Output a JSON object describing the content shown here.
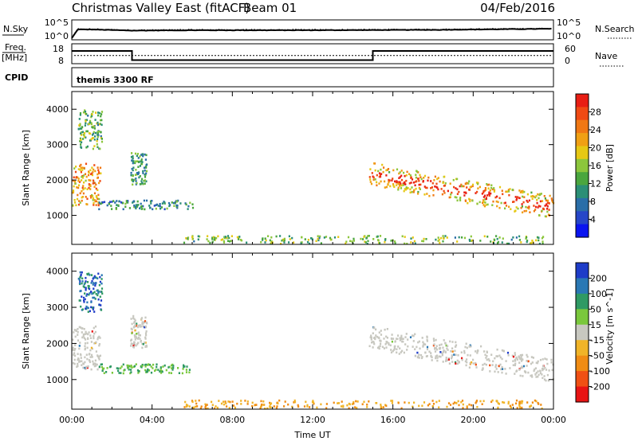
{
  "header": {
    "station": "Christmas Valley East (fitACF)",
    "beam": "Beam 01",
    "date": "04/Feb/2016"
  },
  "panels": {
    "nsky": {
      "label": "N.Sky",
      "ticks_left": [
        "10^5",
        "10^0"
      ],
      "right_label": "N.Search",
      "ticks_right": [
        "10^5",
        "10^0"
      ]
    },
    "freq": {
      "label_line1": "Freq.",
      "label_line2": "[MHz]",
      "ticks_left": [
        "18",
        "8"
      ],
      "right_label": "Nave",
      "ticks_right": [
        "60",
        "0"
      ]
    },
    "cpid": {
      "label": "CPID",
      "value": "themis 3300 RF"
    }
  },
  "time_axis": {
    "title": "Time UT",
    "ticks": [
      "00:00",
      "04:00",
      "08:00",
      "12:00",
      "16:00",
      "20:00",
      "00:00"
    ]
  },
  "power_panel": {
    "ylabel": "Slant Range [km]",
    "yticks": [
      "1000",
      "2000",
      "3000",
      "4000"
    ],
    "colorbar_label": "Power [dB]",
    "colorbar_ticks": [
      "4",
      "8",
      "12",
      "16",
      "20",
      "24",
      "28"
    ],
    "colors": [
      "#0a14f0",
      "#2646c8",
      "#2a6ea8",
      "#2b8f76",
      "#4aa63e",
      "#8cc63c",
      "#e6c814",
      "#f0a014",
      "#f07814",
      "#f04a14",
      "#e81e14"
    ]
  },
  "velocity_panel": {
    "ylabel": "Slant Range [km]",
    "yticks": [
      "1000",
      "2000",
      "3000",
      "4000"
    ],
    "colorbar_label": "Velocity [m s^-1]",
    "colorbar_ticks": [
      "200",
      "100",
      "50",
      "15",
      "-15",
      "-50",
      "-100",
      "-200"
    ],
    "colors": [
      "#1e3cc8",
      "#2a78b4",
      "#2f9a64",
      "#7ac83c",
      "#c8c8c0",
      "#f0b428",
      "#f08c14",
      "#f05014",
      "#e81414"
    ],
    "ground_scatter_color": "#c8c8c0"
  },
  "chart_data": {
    "type": "heatmap",
    "x_range_hours": [
      0,
      24
    ],
    "y_range_km": [
      180,
      4500
    ],
    "nsky_log10_approx": [
      [
        0,
        0.2
      ],
      [
        0.3,
        2.6
      ],
      [
        1,
        2.6
      ],
      [
        3,
        2.3
      ],
      [
        6,
        2.4
      ],
      [
        12,
        2.4
      ],
      [
        18,
        2.5
      ],
      [
        24,
        2.8
      ]
    ],
    "freq_mhz_steps": [
      [
        0,
        14.5
      ],
      [
        3,
        14.5
      ],
      [
        3,
        9.5
      ],
      [
        15,
        9.5
      ],
      [
        15,
        14.5
      ],
      [
        24,
        14.5
      ]
    ],
    "nave_dotted_approx": 24,
    "echo_regions": [
      {
        "x": [
          0.0,
          1.4
        ],
        "y": [
          1300,
          2500
        ],
        "power_db": 20,
        "velocity": "mixed ground/iono"
      },
      {
        "x": [
          0.3,
          1.5
        ],
        "y": [
          2900,
          4000
        ],
        "power_db": 12,
        "velocity": "positive 50-200"
      },
      {
        "x": [
          1.3,
          6.0
        ],
        "y": [
          1200,
          1450
        ],
        "power_db": 8,
        "velocity": "15-50"
      },
      {
        "x": [
          2.9,
          3.7
        ],
        "y": [
          1900,
          2800
        ],
        "power_db": 10,
        "velocity": "ground scatter"
      },
      {
        "x": [
          5.5,
          23.5
        ],
        "y": [
          200,
          450
        ],
        "power_db": 12,
        "velocity": "-15 to -50"
      },
      {
        "x": [
          14.8,
          24.0
        ],
        "y": [
          1000,
          2500
        ],
        "power_db": 18,
        "velocity": "ground scatter"
      }
    ]
  }
}
